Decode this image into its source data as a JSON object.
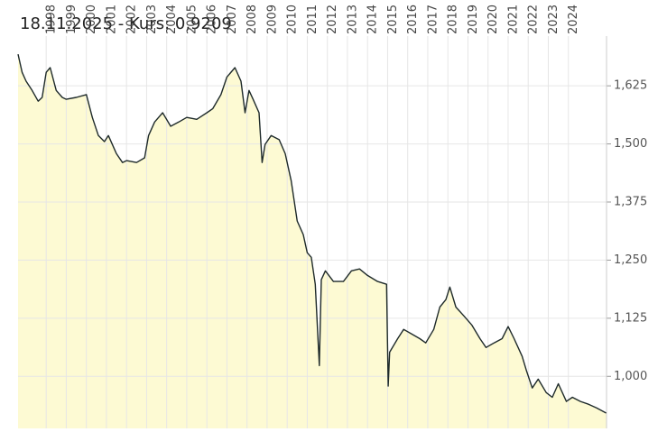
{
  "header": "18.11.2025  -  Kurs: 0,9209",
  "chart_data": {
    "type": "line",
    "color": "#1e2a2a",
    "fill": "#fdfad3",
    "grid": true,
    "xlim": [
      1996.6,
      2025.9
    ],
    "ylim": [
      0.888,
      1.732
    ],
    "xticks": [
      1998,
      1999,
      2000,
      2001,
      2002,
      2003,
      2004,
      2005,
      2006,
      2007,
      2008,
      2009,
      2010,
      2011,
      2012,
      2013,
      2014,
      2015,
      2016,
      2017,
      2018,
      2019,
      2020,
      2021,
      2022,
      2023,
      2024
    ],
    "yticks": [
      {
        "value": 1.0,
        "label": "1,000"
      },
      {
        "value": 1.125,
        "label": "1,125"
      },
      {
        "value": 1.25,
        "label": "1,250"
      },
      {
        "value": 1.375,
        "label": "1,375"
      },
      {
        "value": 1.5,
        "label": "1,500"
      },
      {
        "value": 1.625,
        "label": "1,625"
      }
    ],
    "x": [
      1996.6,
      1996.8,
      1997.0,
      1997.3,
      1997.6,
      1997.8,
      1998.0,
      1998.2,
      1998.5,
      1998.8,
      1999.0,
      1999.5,
      2000.0,
      2000.3,
      2000.6,
      2000.9,
      2001.1,
      2001.5,
      2001.8,
      2002.0,
      2002.5,
      2002.9,
      2003.1,
      2003.4,
      2003.8,
      2004.2,
      2004.6,
      2005.0,
      2005.5,
      2006.0,
      2006.3,
      2006.7,
      2007.0,
      2007.4,
      2007.7,
      2007.9,
      2008.1,
      2008.3,
      2008.6,
      2008.75,
      2008.9,
      2009.2,
      2009.6,
      2009.9,
      2010.2,
      2010.5,
      2010.8,
      2011.0,
      2011.2,
      2011.4,
      2011.6,
      2011.7,
      2011.9,
      2012.3,
      2012.8,
      2013.2,
      2013.6,
      2014.0,
      2014.5,
      2014.95,
      2015.03,
      2015.1,
      2015.5,
      2015.8,
      2016.2,
      2016.6,
      2016.9,
      2017.3,
      2017.6,
      2017.9,
      2018.1,
      2018.4,
      2018.8,
      2019.2,
      2019.6,
      2019.9,
      2020.3,
      2020.7,
      2021.0,
      2021.3,
      2021.7,
      2021.9,
      2022.2,
      2022.5,
      2022.9,
      2023.2,
      2023.5,
      2023.9,
      2024.2,
      2024.6,
      2025.0,
      2025.4,
      2025.88
    ],
    "values": [
      1.693,
      1.654,
      1.635,
      1.615,
      1.592,
      1.6,
      1.654,
      1.664,
      1.615,
      1.6,
      1.596,
      1.6,
      1.606,
      1.557,
      1.518,
      1.505,
      1.518,
      1.479,
      1.46,
      1.464,
      1.46,
      1.47,
      1.518,
      1.547,
      1.567,
      1.538,
      1.547,
      1.557,
      1.553,
      1.567,
      1.576,
      1.606,
      1.644,
      1.664,
      1.635,
      1.567,
      1.615,
      1.596,
      1.567,
      1.46,
      1.499,
      1.518,
      1.509,
      1.479,
      1.421,
      1.334,
      1.305,
      1.266,
      1.256,
      1.198,
      1.023,
      1.208,
      1.227,
      1.204,
      1.204,
      1.227,
      1.231,
      1.217,
      1.204,
      1.198,
      0.979,
      1.052,
      1.081,
      1.101,
      1.091,
      1.081,
      1.072,
      1.101,
      1.149,
      1.165,
      1.192,
      1.149,
      1.13,
      1.11,
      1.081,
      1.062,
      1.072,
      1.081,
      1.107,
      1.081,
      1.043,
      1.014,
      0.975,
      0.994,
      0.965,
      0.955,
      0.984,
      0.946,
      0.955,
      0.946,
      0.94,
      0.932,
      0.9209
    ]
  }
}
